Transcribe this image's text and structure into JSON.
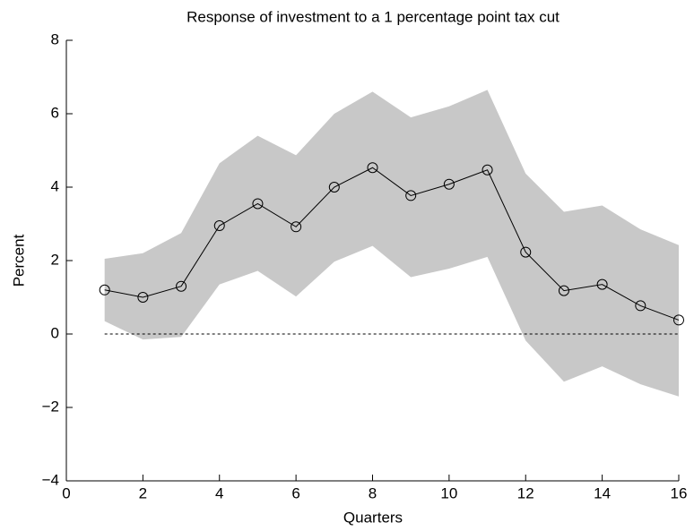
{
  "chart_data": {
    "type": "line",
    "title": "Response of investment to a 1 percentage point tax cut",
    "xlabel": "Quarters",
    "ylabel": "Percent",
    "x": [
      1,
      2,
      3,
      4,
      5,
      6,
      7,
      8,
      9,
      10,
      11,
      12,
      13,
      14,
      15,
      16
    ],
    "values": [
      1.2,
      1.0,
      1.3,
      2.95,
      3.55,
      2.92,
      4.0,
      4.53,
      3.77,
      4.08,
      4.47,
      2.23,
      1.18,
      1.35,
      0.77,
      0.38
    ],
    "color": "#000000",
    "band": {
      "upper": [
        2.05,
        2.2,
        2.75,
        4.65,
        5.4,
        4.87,
        6.0,
        6.6,
        5.9,
        6.2,
        6.65,
        4.37,
        3.33,
        3.5,
        2.85,
        2.42
      ],
      "lower": [
        0.35,
        -0.15,
        -0.08,
        1.35,
        1.72,
        1.02,
        1.97,
        2.4,
        1.55,
        1.78,
        2.1,
        -0.18,
        -1.3,
        -0.88,
        -1.37,
        -1.7
      ],
      "color": "#c8c8c8"
    },
    "hline": 0,
    "xlim": [
      0,
      16
    ],
    "xticks": [
      0,
      2,
      4,
      6,
      8,
      10,
      12,
      14,
      16
    ],
    "ylim": [
      -4,
      8
    ],
    "yticks": [
      {
        "value": -4,
        "label": "−4"
      },
      {
        "value": -2,
        "label": "−2"
      },
      0,
      2,
      4,
      6,
      8
    ]
  }
}
